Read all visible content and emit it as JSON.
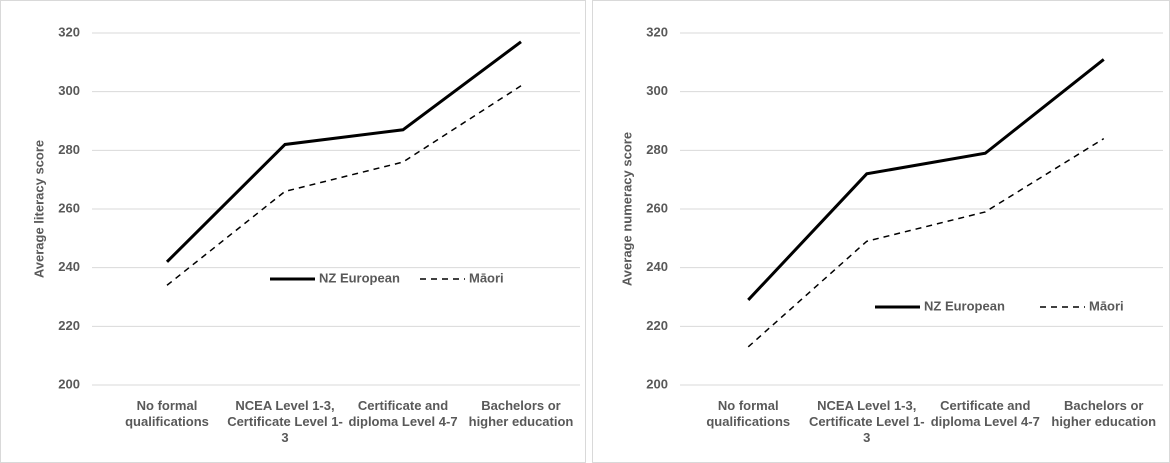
{
  "chart_data": [
    {
      "type": "line",
      "ylabel": "Average literacy score",
      "categories": [
        "No formal qualifications",
        "NCEA Level 1-3, Certificate Level 1-3",
        "Certificate and diploma Level 4-7",
        "Bachelors or higher education"
      ],
      "series": [
        {
          "name": "NZ European",
          "color": "#000000",
          "line_style": "solid",
          "values": [
            242,
            282,
            287,
            317
          ]
        },
        {
          "name": "Māori",
          "color": "#000000",
          "line_style": "dashed",
          "values": [
            234,
            266,
            276,
            302
          ]
        }
      ],
      "ylim": [
        200,
        320
      ],
      "yticks": [
        200,
        220,
        240,
        260,
        280,
        300,
        320
      ],
      "grid": true
    },
    {
      "type": "line",
      "ylabel": "Average numeracy score",
      "categories": [
        "No formal qualifications",
        "NCEA Level 1-3, Certificate Level 1-3",
        "Certificate and diploma Level 4-7",
        "Bachelors or higher education"
      ],
      "series": [
        {
          "name": "NZ European",
          "color": "#000000",
          "line_style": "solid",
          "values": [
            229,
            272,
            279,
            311
          ]
        },
        {
          "name": "Māori",
          "color": "#000000",
          "line_style": "dashed",
          "values": [
            213,
            249,
            259,
            284
          ]
        }
      ],
      "ylim": [
        200,
        320
      ],
      "yticks": [
        200,
        220,
        240,
        260,
        280,
        300,
        320
      ],
      "grid": true
    }
  ]
}
